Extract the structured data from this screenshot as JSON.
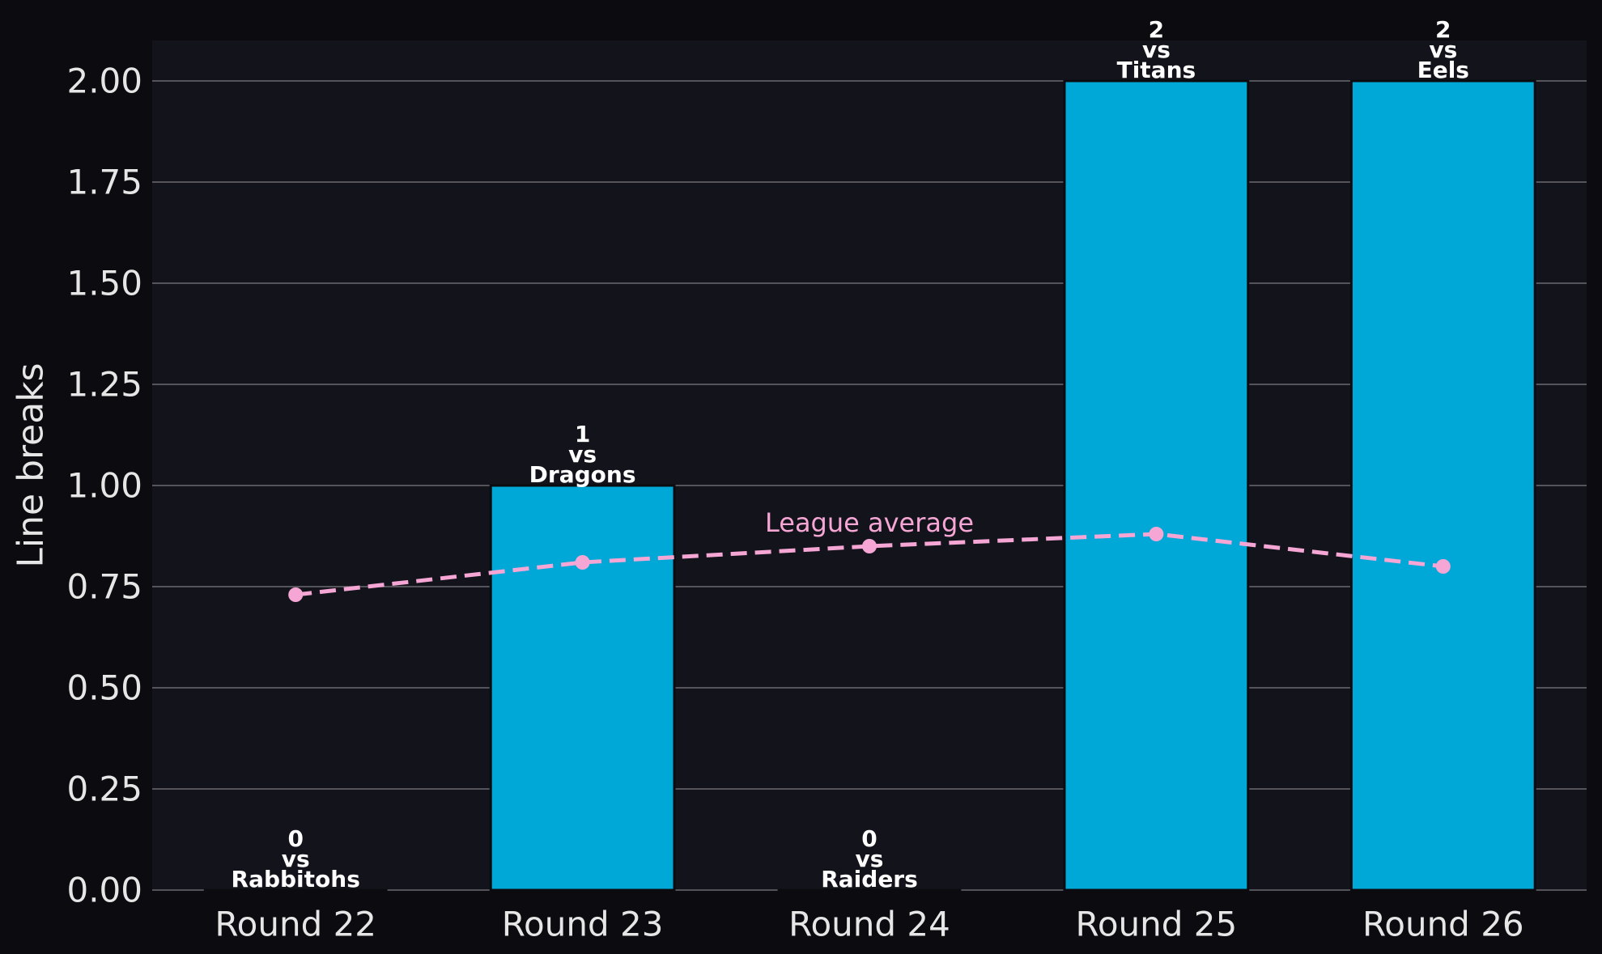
{
  "colors": {
    "page_bg": "#0b0b10",
    "plot_bg": "#13131b",
    "grid": "#6b6b70",
    "tick_text": "#e6e6e6",
    "bar": "#00a8d8",
    "bar_edge": "#0b0b10",
    "average": "#f5a6d4",
    "label_text": "#ffffff"
  },
  "chart_data": {
    "type": "bar",
    "title": "",
    "xlabel": "",
    "ylabel": "Line breaks",
    "ylim": [
      0,
      2.1
    ],
    "yticks": [
      "0.00",
      "0.25",
      "0.50",
      "0.75",
      "1.00",
      "1.25",
      "1.50",
      "1.75",
      "2.00"
    ],
    "ytick_values": [
      0,
      0.25,
      0.5,
      0.75,
      1.0,
      1.25,
      1.5,
      1.75,
      2.0
    ],
    "grid": "y",
    "categories": [
      "Round 22",
      "Round 23",
      "Round 24",
      "Round 25",
      "Round 26"
    ],
    "series": [
      {
        "values": [
          0,
          1,
          0,
          2,
          2
        ],
        "labels": [
          [
            "0",
            "vs",
            "Rabbitohs"
          ],
          [
            "1",
            "vs",
            "Dragons"
          ],
          [
            "0",
            "vs",
            "Raiders"
          ],
          [
            "2",
            "vs",
            "Titans"
          ],
          [
            "2",
            "vs",
            "Eels"
          ]
        ]
      },
      {
        "name": "League average",
        "type": "line",
        "style": "dashed",
        "values": [
          0.73,
          0.81,
          0.85,
          0.88,
          0.8
        ]
      }
    ]
  }
}
